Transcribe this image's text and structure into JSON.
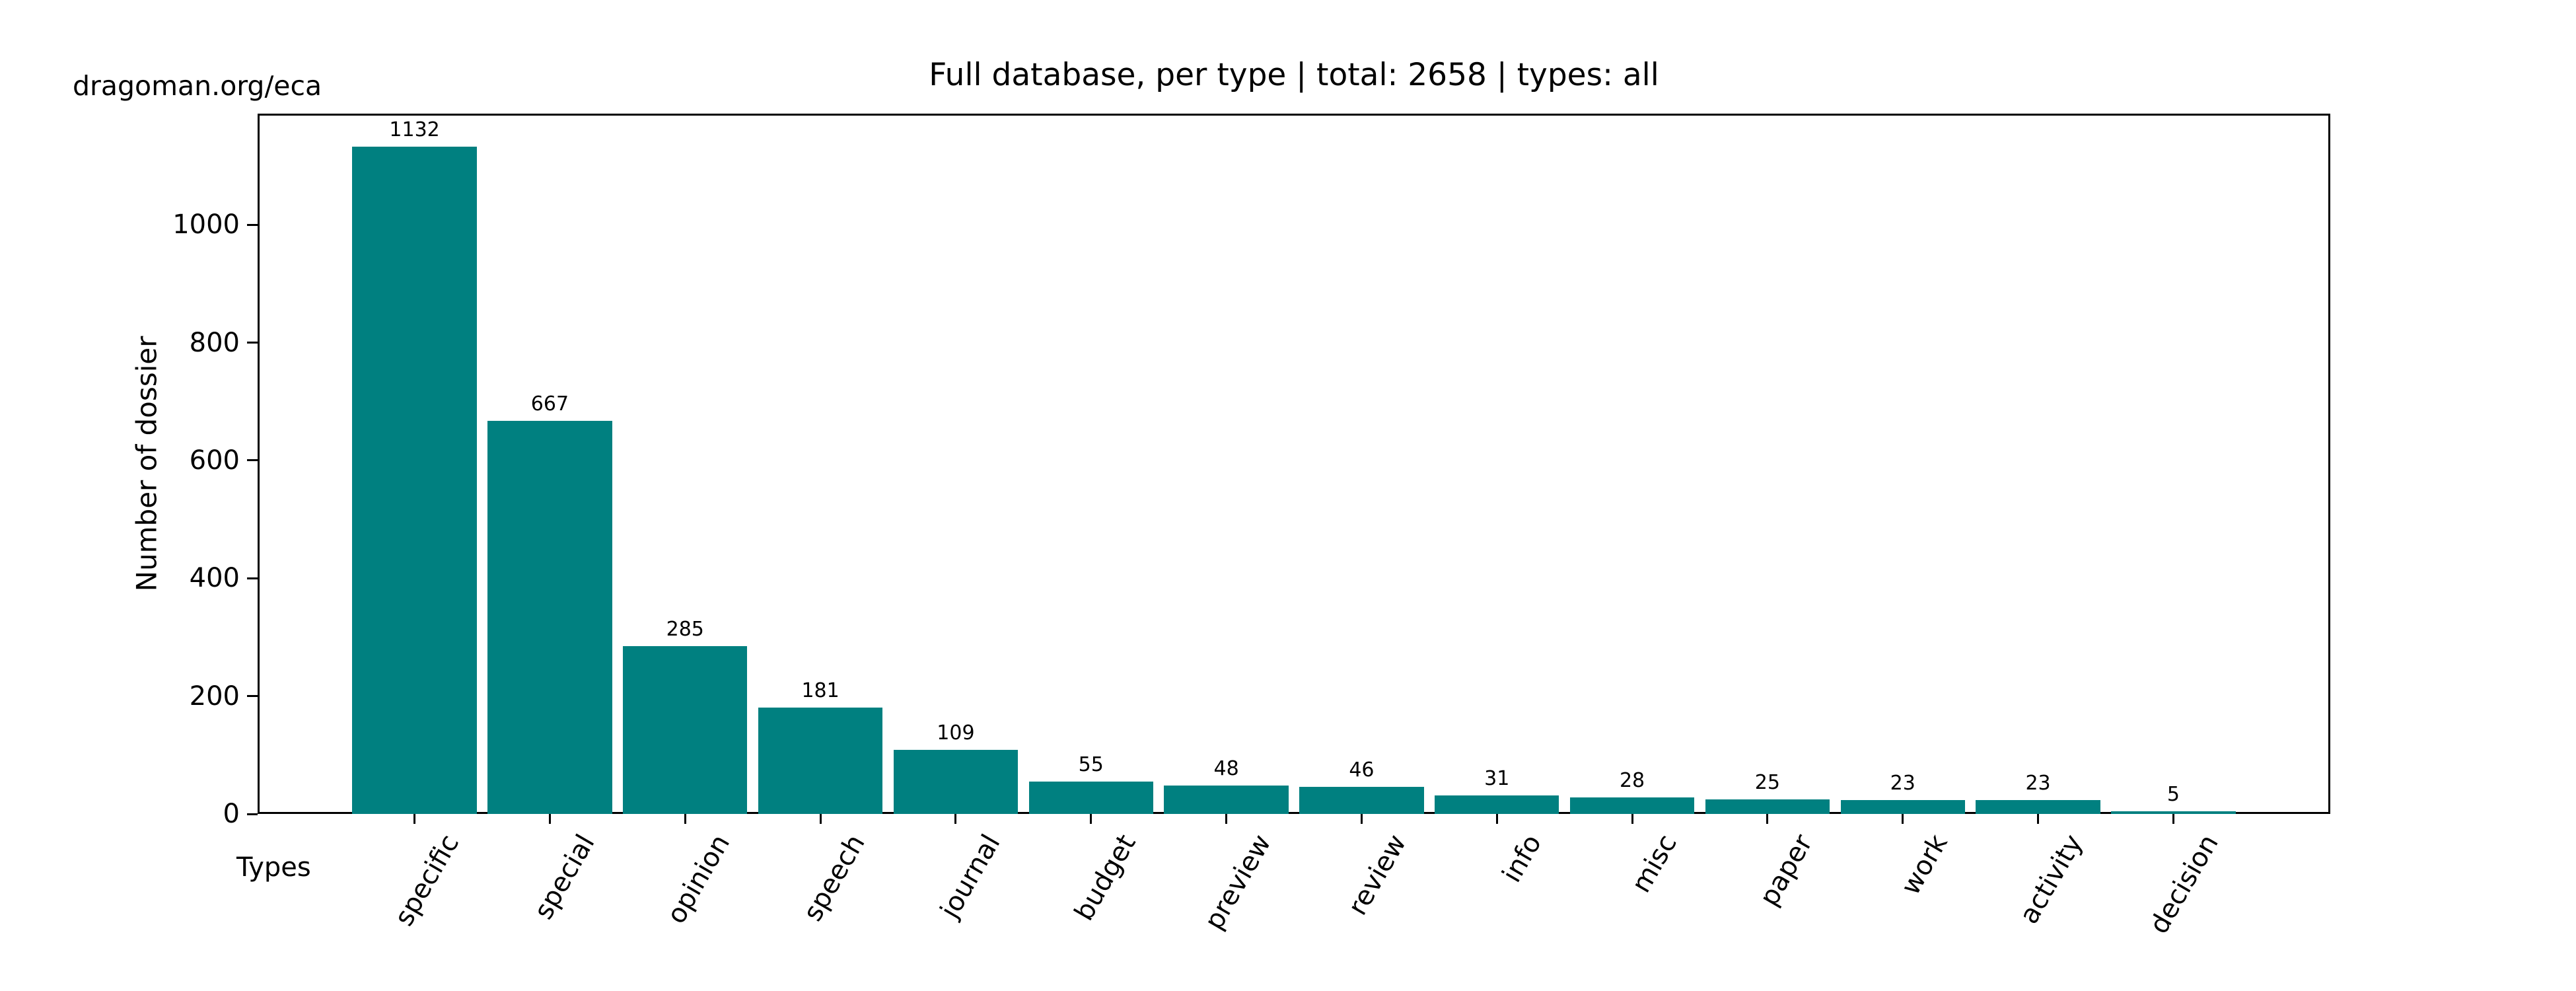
{
  "header": {
    "watermark": "dragoman.org/eca"
  },
  "chart_data": {
    "type": "bar",
    "title": "Full database, per type | total: 2658 | types: all",
    "xlabel": "Types",
    "ylabel": "Number of dossier",
    "categories": [
      "specific",
      "special",
      "opinion",
      "speech",
      "journal",
      "budget",
      "preview",
      "review",
      "info",
      "misc",
      "paper",
      "work",
      "activity",
      "decision"
    ],
    "values": [
      1132,
      667,
      285,
      181,
      109,
      55,
      48,
      46,
      31,
      28,
      25,
      23,
      23,
      5
    ],
    "total": 2658,
    "bar_color": "#008080",
    "text_color": "#000000",
    "yticks": [
      0,
      200,
      400,
      600,
      800,
      1000
    ],
    "ylim": [
      0,
      1188.6
    ],
    "xlim": [
      -1.16,
      14.16
    ],
    "bar_width": 0.92,
    "xtick_rotation_deg": -60,
    "grid": false,
    "legend": false
  }
}
